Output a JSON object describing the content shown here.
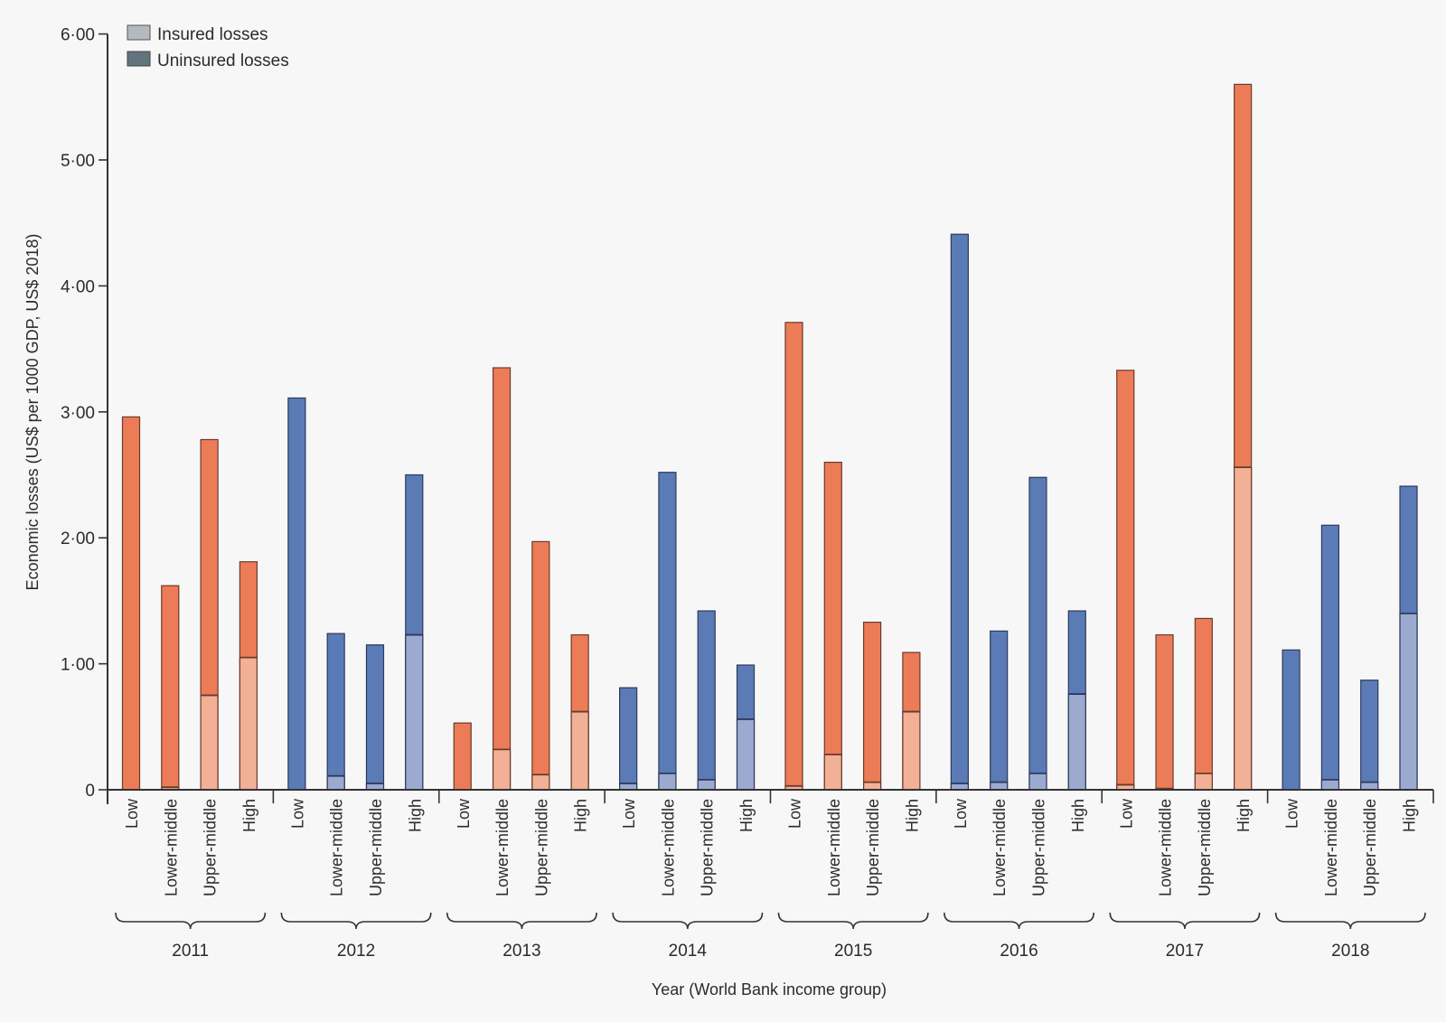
{
  "chart_data": {
    "type": "bar",
    "stacked": true,
    "title": "",
    "xlabel": "Year (World Bank income group)",
    "ylabel": "Economic losses (US$ per 1000 GDP, US$ 2018)",
    "ylim": [
      0,
      6
    ],
    "yticks": [
      0,
      1,
      2,
      3,
      4,
      5,
      6
    ],
    "ytick_labels": [
      "0",
      "1·00",
      "2·00",
      "3·00",
      "4·00",
      "5·00",
      "6·00"
    ],
    "grid": false,
    "legend": {
      "position": "top-left",
      "entries": [
        {
          "label": "Insured losses",
          "color": "#b4b8c0"
        },
        {
          "label": "Uninsured losses",
          "color": "#62737d"
        }
      ]
    },
    "colors": {
      "orange_uninsured": "#ec7c57",
      "orange_insured": "#f2b096",
      "blue_uninsured": "#5b7bb6",
      "blue_insured": "#9daad0"
    },
    "income_groups": [
      "Low",
      "Lower-middle",
      "Upper-middle",
      "High"
    ],
    "years": [
      {
        "year": "2011",
        "palette": "orange",
        "total": [
          2.96,
          1.62,
          2.78,
          1.81
        ],
        "insured": [
          0.0,
          0.02,
          0.75,
          1.05
        ]
      },
      {
        "year": "2012",
        "palette": "blue",
        "total": [
          3.11,
          1.24,
          1.15,
          2.5
        ],
        "insured": [
          0.0,
          0.11,
          0.05,
          1.23
        ]
      },
      {
        "year": "2013",
        "palette": "orange",
        "total": [
          0.53,
          3.35,
          1.97,
          1.23
        ],
        "insured": [
          0.0,
          0.32,
          0.12,
          0.62
        ]
      },
      {
        "year": "2014",
        "palette": "blue",
        "total": [
          0.81,
          2.52,
          1.42,
          0.99
        ],
        "insured": [
          0.05,
          0.13,
          0.08,
          0.56
        ]
      },
      {
        "year": "2015",
        "palette": "orange",
        "total": [
          3.71,
          2.6,
          1.33,
          1.09
        ],
        "insured": [
          0.03,
          0.28,
          0.06,
          0.62
        ]
      },
      {
        "year": "2016",
        "palette": "blue",
        "total": [
          4.41,
          1.26,
          2.48,
          1.42
        ],
        "insured": [
          0.05,
          0.06,
          0.13,
          0.76
        ]
      },
      {
        "year": "2017",
        "palette": "orange",
        "total": [
          3.33,
          1.23,
          1.36,
          5.6
        ],
        "insured": [
          0.04,
          0.01,
          0.13,
          2.56
        ]
      },
      {
        "year": "2018",
        "palette": "blue",
        "total": [
          1.11,
          2.1,
          0.87,
          2.41
        ],
        "insured": [
          0.0,
          0.08,
          0.06,
          1.4
        ]
      }
    ]
  }
}
